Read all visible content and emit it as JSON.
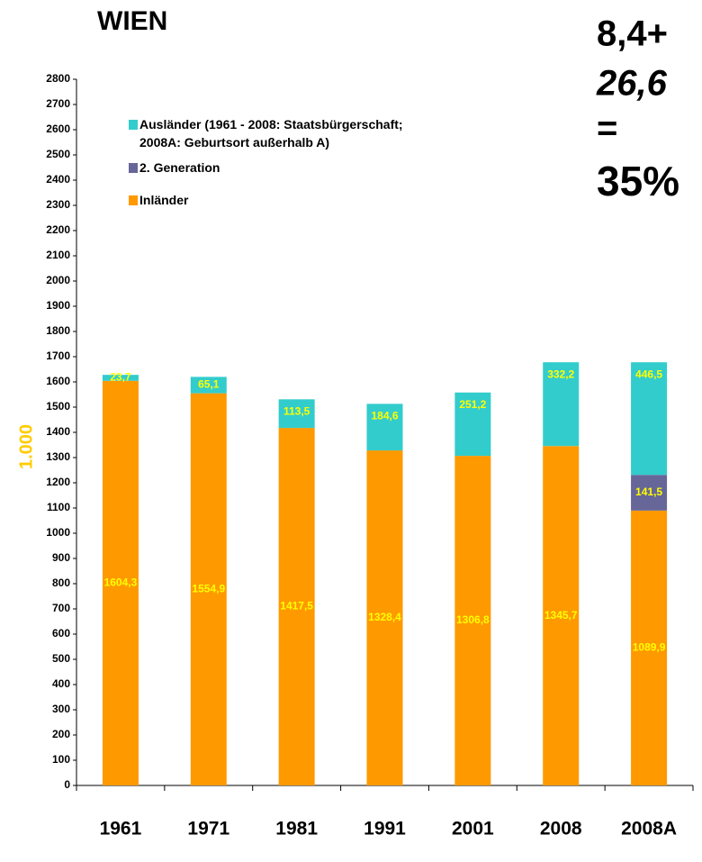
{
  "chart_data": {
    "type": "stacked_bar",
    "title": "WIEN",
    "annotations": [
      "8,4+",
      "26,6",
      "=",
      "35%"
    ],
    "y_label": "1.000",
    "categories": [
      "1961",
      "1971",
      "1981",
      "1991",
      "2001",
      "2008",
      "2008A"
    ],
    "series": [
      {
        "name": "Inländer",
        "color": "#ff9900",
        "values": [
          1604.3,
          1554.9,
          1417.5,
          1328.4,
          1306.8,
          1345.7,
          1089.9
        ],
        "value_labels": [
          "1604,3",
          "1554,9",
          "1417,5",
          "1328,4",
          "1306,8",
          "1345,7",
          "1089,9"
        ]
      },
      {
        "name": "2. Generation",
        "color": "#666699",
        "values": [
          null,
          null,
          null,
          null,
          null,
          null,
          141.5
        ],
        "value_labels": [
          null,
          null,
          null,
          null,
          null,
          null,
          "141,5"
        ]
      },
      {
        "name": "Ausländer (1961 - 2008: Staatsbürgerschaft;\n2008A: Geburtsort außerhalb A)",
        "color": "#33cccc",
        "values": [
          23.7,
          65.1,
          113.5,
          184.6,
          251.2,
          332.2,
          446.5
        ],
        "value_labels": [
          "23,7",
          "65,1",
          "113,5",
          "184,6",
          "251,2",
          "332,2",
          "446,5"
        ]
      }
    ],
    "ylim": [
      0,
      2800
    ],
    "yticks": [
      0,
      100,
      200,
      300,
      400,
      500,
      600,
      700,
      800,
      900,
      1000,
      1100,
      1200,
      1300,
      1400,
      1500,
      1600,
      1700,
      1800,
      1900,
      2000,
      2100,
      2200,
      2300,
      2400,
      2500,
      2600,
      2700,
      2800
    ]
  }
}
